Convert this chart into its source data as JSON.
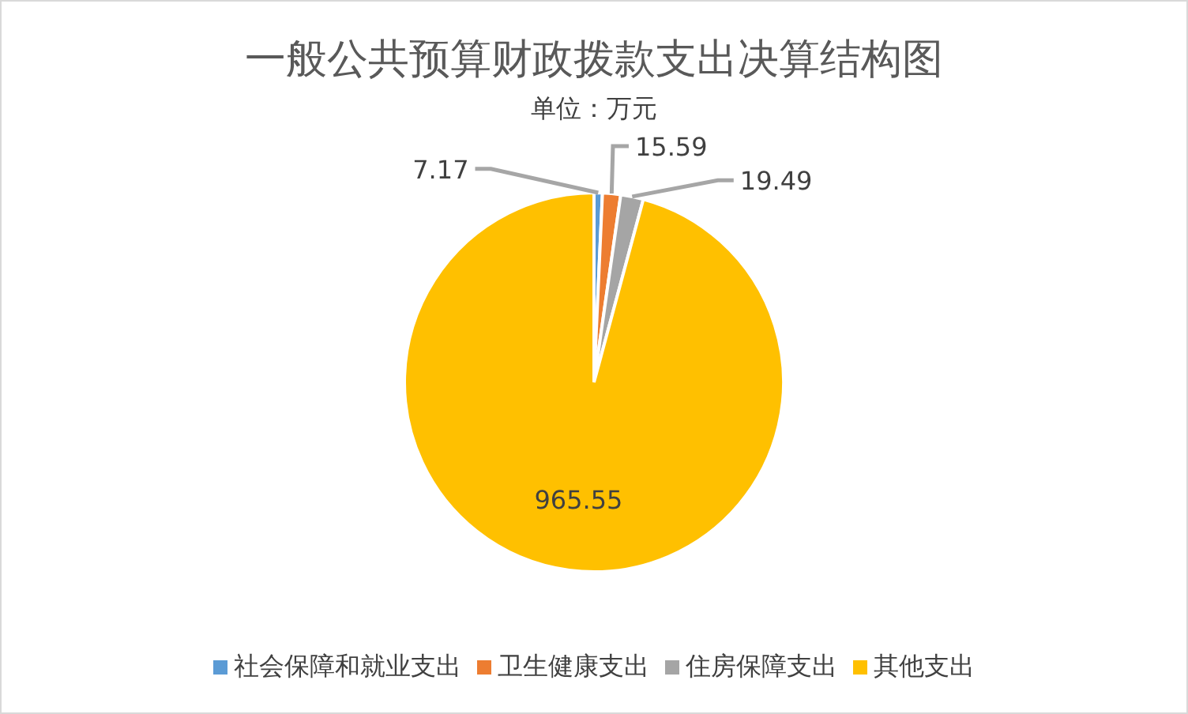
{
  "chart_data": {
    "type": "pie",
    "title": "一般公共预算财政拨款支出决算结构图",
    "subtitle": "单位：万元",
    "categories": [
      "社会保障和就业支出",
      "卫生健康支出",
      "住房保障支出",
      "其他支出"
    ],
    "values": [
      7.17,
      15.59,
      19.49,
      965.55
    ],
    "colors": [
      "#5b9bd5",
      "#ed7d31",
      "#a5a5a5",
      "#ffc000"
    ],
    "data_labels": true,
    "legend": "bottom"
  }
}
